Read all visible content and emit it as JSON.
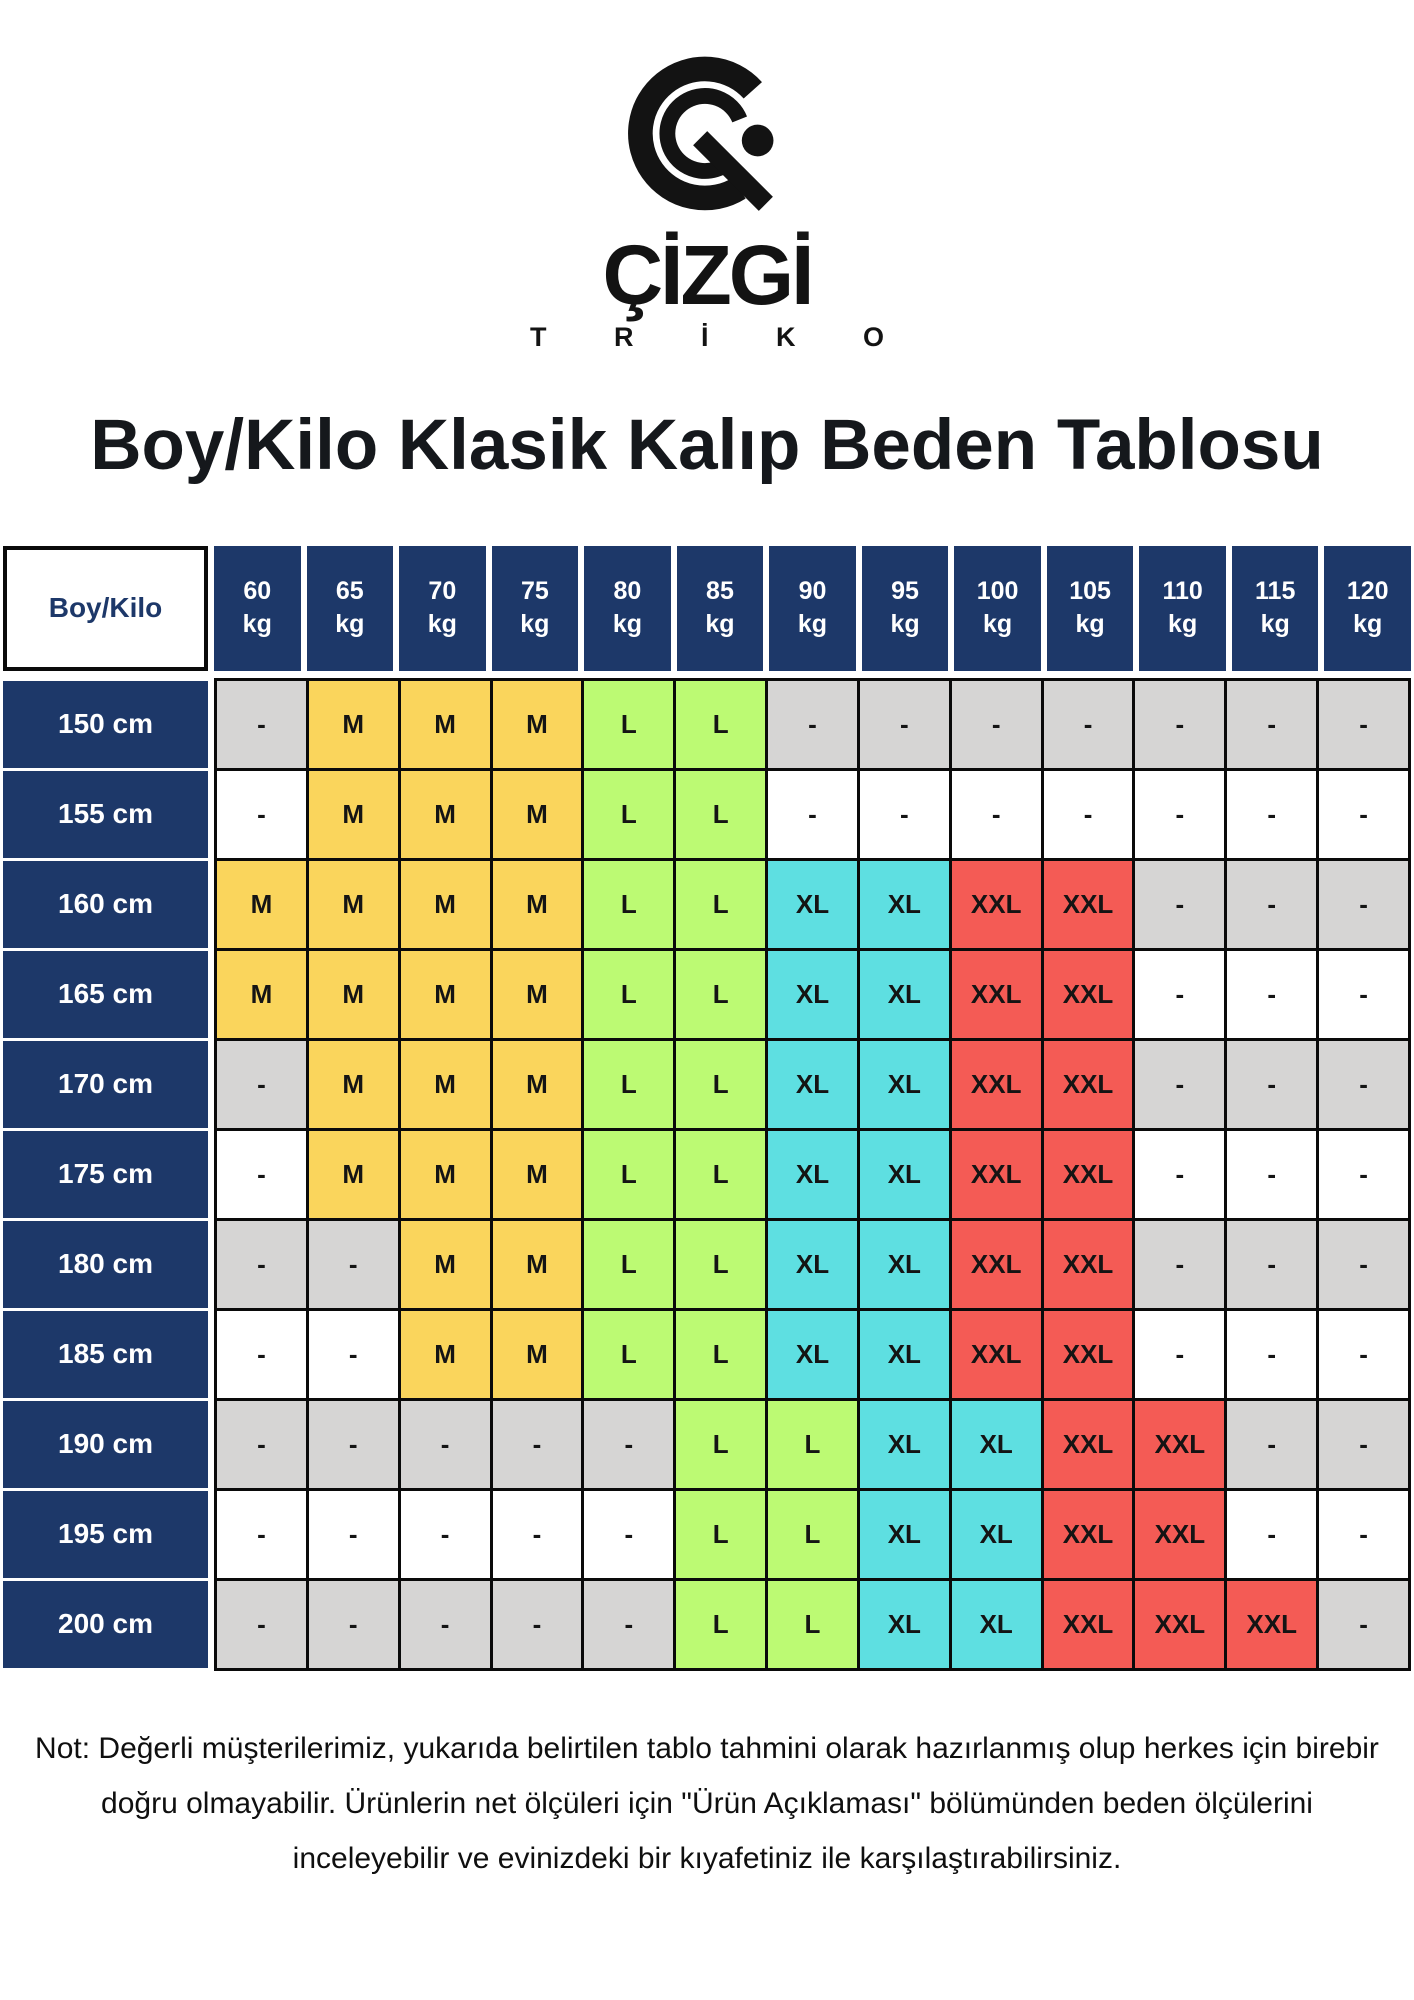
{
  "brand": {
    "name": "ÇİZGİ",
    "subname": "T R İ K O"
  },
  "title": "Boy/Kilo Klasik Kalıp Beden Tablosu",
  "table": {
    "corner_label": "Boy/Kilo",
    "weight_unit": "kg",
    "weights": [
      "60",
      "65",
      "70",
      "75",
      "80",
      "85",
      "90",
      "95",
      "100",
      "105",
      "110",
      "115",
      "120"
    ],
    "rows": [
      {
        "height": "150 cm",
        "empty_style": "gray",
        "cells": [
          "-",
          "M",
          "M",
          "M",
          "L",
          "L",
          "-",
          "-",
          "-",
          "-",
          "-",
          "-",
          "-"
        ]
      },
      {
        "height": "155 cm",
        "empty_style": "white",
        "cells": [
          "-",
          "M",
          "M",
          "M",
          "L",
          "L",
          "-",
          "-",
          "-",
          "-",
          "-",
          "-",
          "-"
        ]
      },
      {
        "height": "160 cm",
        "empty_style": "gray",
        "cells": [
          "M",
          "M",
          "M",
          "M",
          "L",
          "L",
          "XL",
          "XL",
          "XXL",
          "XXL",
          "-",
          "-",
          "-"
        ]
      },
      {
        "height": "165 cm",
        "empty_style": "white",
        "cells": [
          "M",
          "M",
          "M",
          "M",
          "L",
          "L",
          "XL",
          "XL",
          "XXL",
          "XXL",
          "-",
          "-",
          "-"
        ]
      },
      {
        "height": "170 cm",
        "empty_style": "gray",
        "cells": [
          "-",
          "M",
          "M",
          "M",
          "L",
          "L",
          "XL",
          "XL",
          "XXL",
          "XXL",
          "-",
          "-",
          "-"
        ]
      },
      {
        "height": "175 cm",
        "empty_style": "white",
        "cells": [
          "-",
          "M",
          "M",
          "M",
          "L",
          "L",
          "XL",
          "XL",
          "XXL",
          "XXL",
          "-",
          "-",
          "-"
        ]
      },
      {
        "height": "180 cm",
        "empty_style": "gray",
        "cells": [
          "-",
          "-",
          "M",
          "M",
          "L",
          "L",
          "XL",
          "XL",
          "XXL",
          "XXL",
          "-",
          "-",
          "-"
        ]
      },
      {
        "height": "185 cm",
        "empty_style": "white",
        "cells": [
          "-",
          "-",
          "M",
          "M",
          "L",
          "L",
          "XL",
          "XL",
          "XXL",
          "XXL",
          "-",
          "-",
          "-"
        ]
      },
      {
        "height": "190 cm",
        "empty_style": "gray",
        "cells": [
          "-",
          "-",
          "-",
          "-",
          "-",
          "L",
          "L",
          "XL",
          "XL",
          "XXL",
          "XXL",
          "-",
          "-"
        ]
      },
      {
        "height": "195 cm",
        "empty_style": "white",
        "cells": [
          "-",
          "-",
          "-",
          "-",
          "-",
          "L",
          "L",
          "XL",
          "XL",
          "XXL",
          "XXL",
          "-",
          "-"
        ]
      },
      {
        "height": "200 cm",
        "empty_style": "gray",
        "cells": [
          "-",
          "-",
          "-",
          "-",
          "-",
          "L",
          "L",
          "XL",
          "XL",
          "XXL",
          "XXL",
          "XXL",
          "-"
        ]
      }
    ]
  },
  "note": "Not: Değerli müşterilerimiz, yukarıda belirtilen tablo tahmini olarak hazırlanmış olup herkes için birebir doğru olmayabilir. Ürünlerin net ölçüleri için \"Ürün Açıklaması\" bölümünden beden ölçülerini inceleyebilir ve evinizdeki bir kıyafetiniz ile karşılaştırabilirsiniz.",
  "colors": {
    "navy": "#1d3869",
    "size_m_yellow": "#FAD55C",
    "size_l_green": "#BCFA73",
    "size_xl_cyan": "#5EDFE1",
    "size_xxl_red": "#F45B55",
    "empty_gray": "#D6D5D4",
    "empty_white": "#FFFFFF",
    "grid_black": "#0a0a0a"
  }
}
